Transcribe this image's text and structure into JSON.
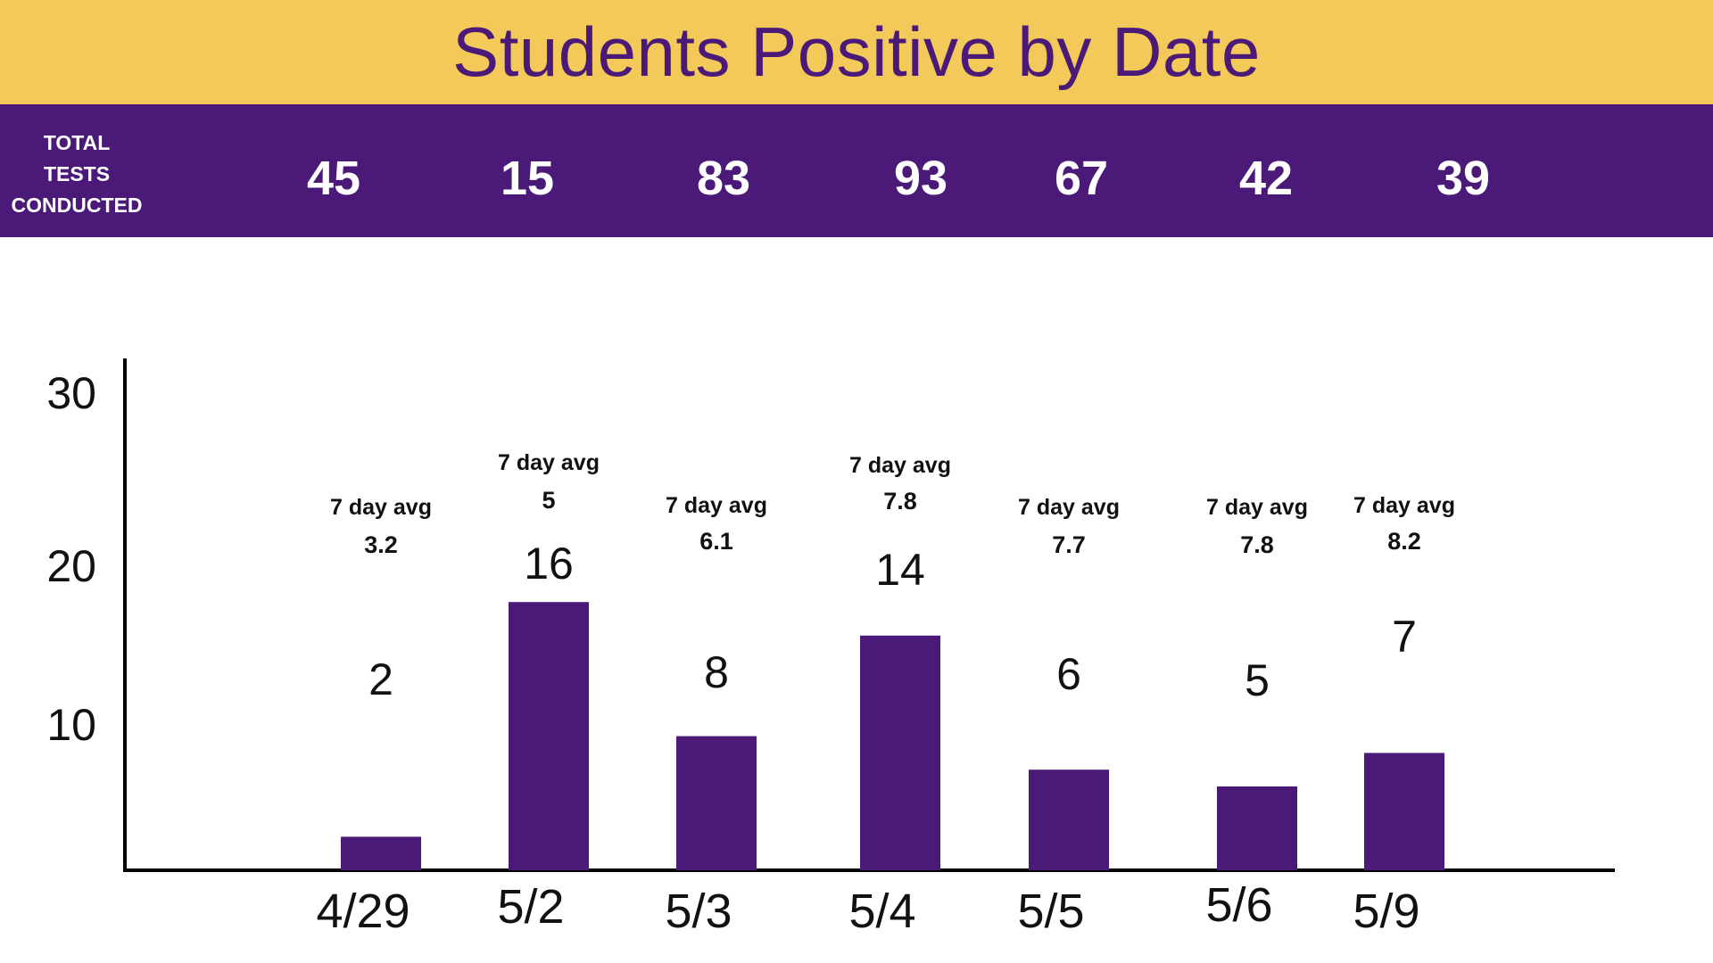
{
  "title": "Students Positive by Date",
  "tests_conducted": {
    "label_lines": [
      "TOTAL",
      "TESTS",
      "CONDUCTED"
    ],
    "values": [
      "45",
      "15",
      "83",
      "93",
      "67",
      "42",
      "39"
    ]
  },
  "colors": {
    "title_band": "#f3c95a",
    "title_text": "#4b1a78",
    "purple": "#4b1a78",
    "axis": "#000000"
  },
  "chart_data": {
    "type": "bar",
    "categories": [
      "4/29",
      "5/2",
      "5/3",
      "5/4",
      "5/5",
      "5/6",
      "5/9"
    ],
    "values": [
      2,
      16,
      8,
      14,
      6,
      5,
      7
    ],
    "data_labels": [
      "2",
      "16",
      "8",
      "14",
      "6",
      "5",
      "7"
    ],
    "avg_label": "7 day avg",
    "seven_day_avg": [
      "3.2",
      "5",
      "6.1",
      "7.8",
      "7.7",
      "7.8",
      "8.2"
    ],
    "y_ticks": [
      10,
      20,
      30
    ],
    "ylim": [
      0,
      30
    ],
    "xlabel": "",
    "ylabel": "",
    "grid": false,
    "legend": "none"
  }
}
